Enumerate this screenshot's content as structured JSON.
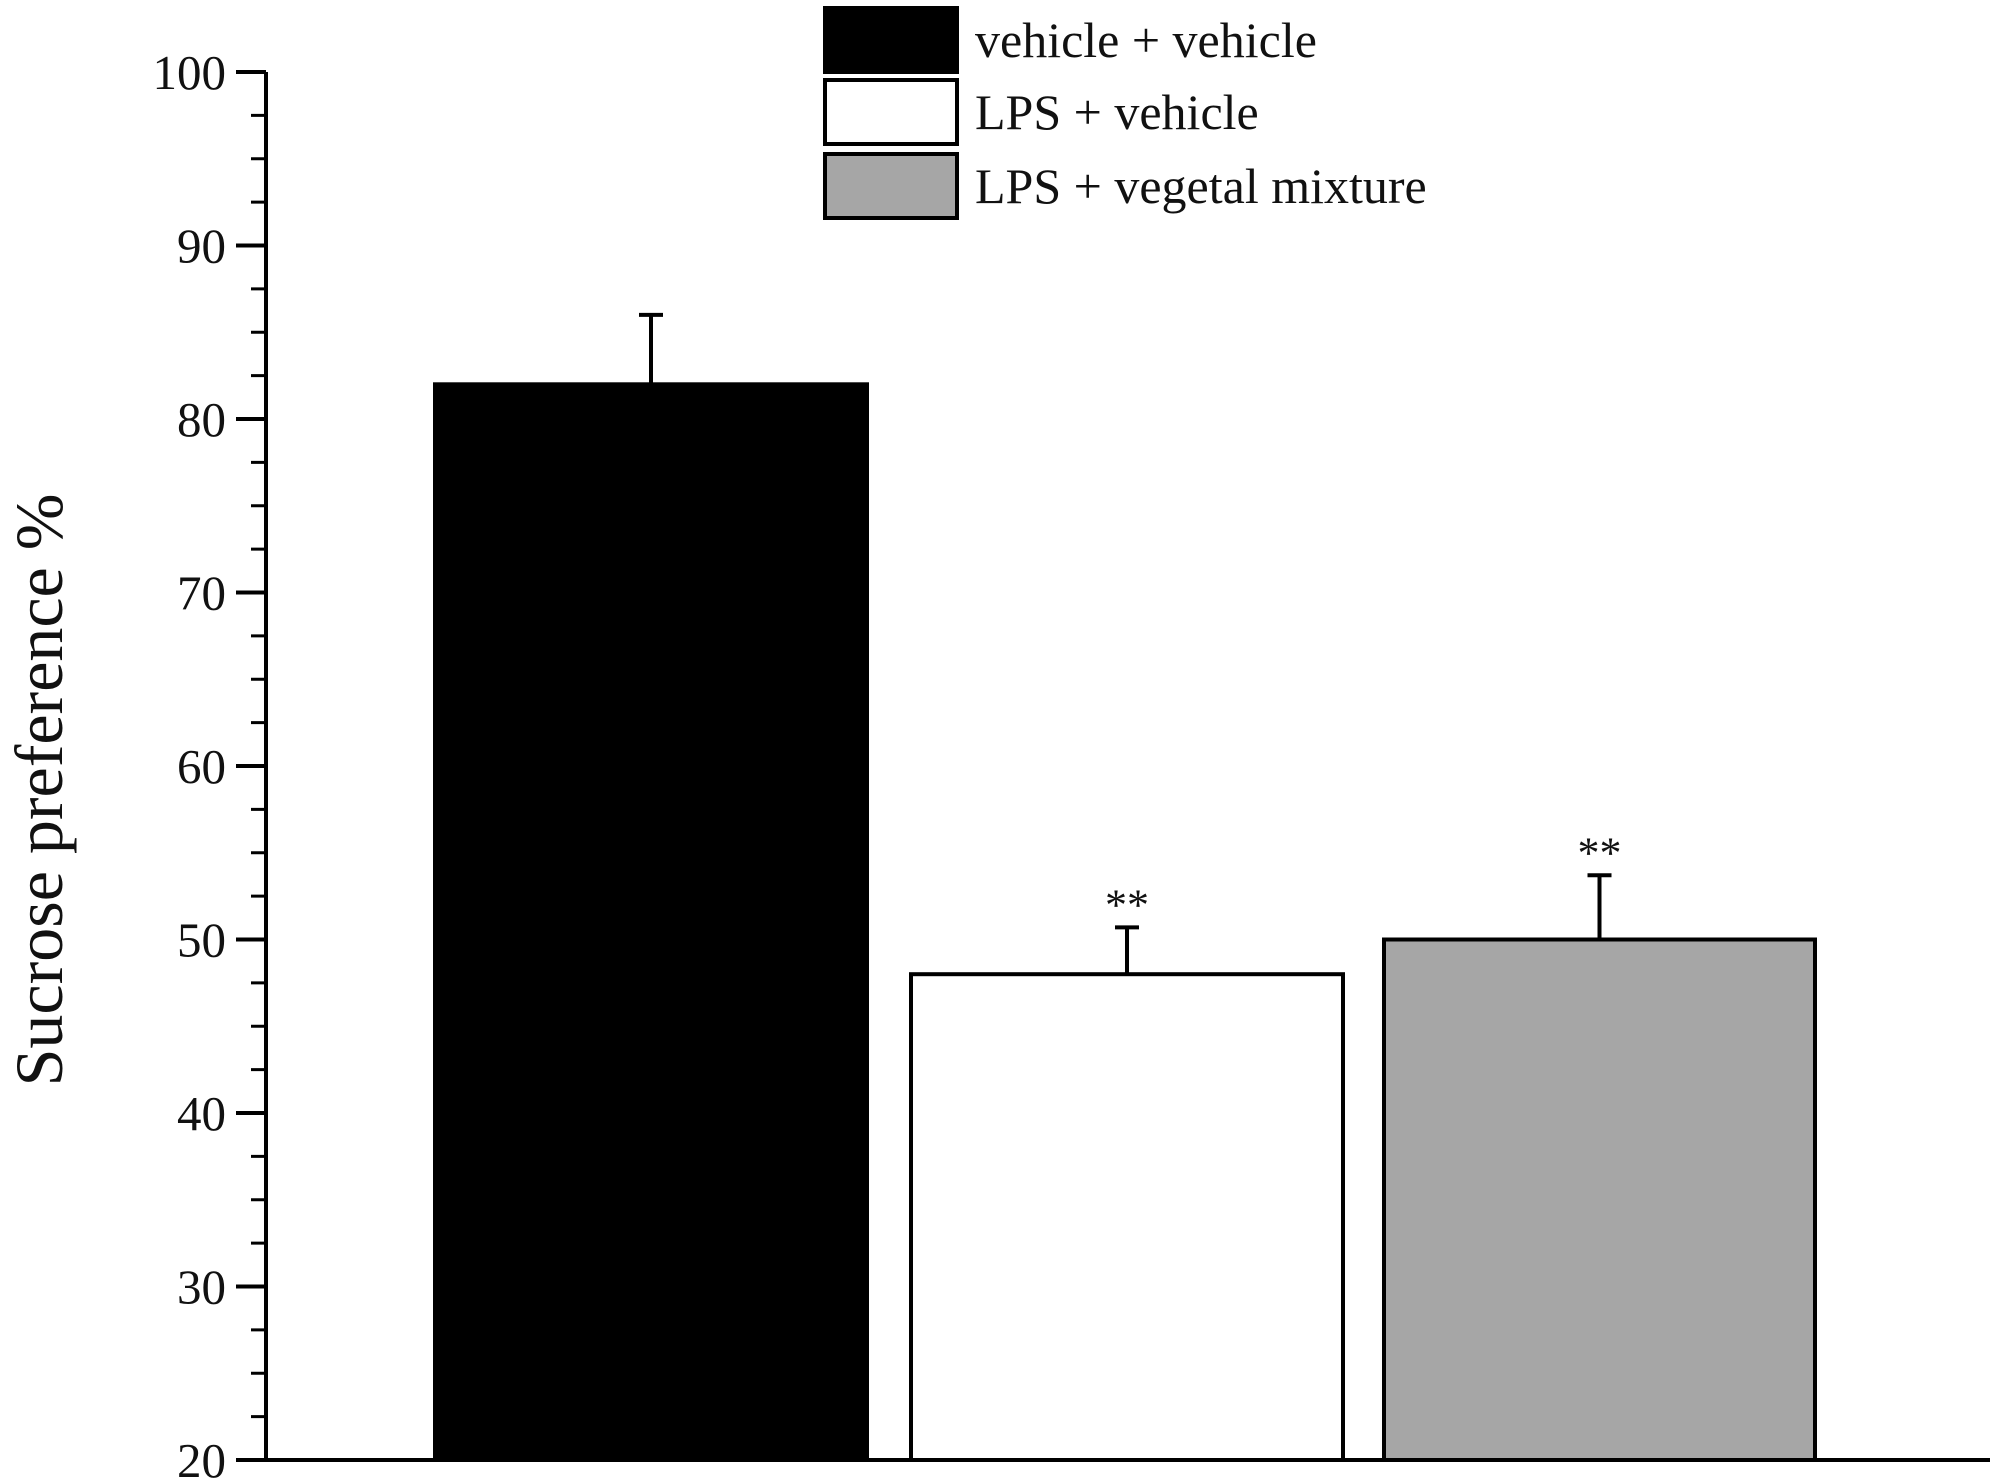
{
  "chart_data": {
    "type": "bar",
    "title": "",
    "xlabel": "",
    "ylabel": "Sucrose preference %",
    "ylim": [
      20,
      100
    ],
    "yticks": [
      20,
      30,
      40,
      50,
      60,
      70,
      80,
      90,
      100
    ],
    "ytick_labels": [
      "20",
      "30",
      "40",
      "50",
      "60",
      "70",
      "80",
      "90",
      "100"
    ],
    "minor_tick_step": 2.5,
    "grid": false,
    "legend_position": "top-center",
    "categories": [
      "vehicle + vehicle",
      "LPS + vehicle",
      "LPS + vegetal mixture"
    ],
    "series": [
      {
        "values": [
          82,
          48,
          50
        ],
        "errors": [
          4,
          2.7,
          3.7
        ],
        "colors": [
          "#000000",
          "#ffffff",
          "#a6a6a6"
        ],
        "annotations": [
          "",
          "**",
          "**"
        ]
      }
    ],
    "legend": [
      {
        "label": "vehicle + vehicle",
        "color": "#000000"
      },
      {
        "label": "LPS + vehicle",
        "color": "#ffffff"
      },
      {
        "label": "LPS + vegetal mixture",
        "color": "#a6a6a6"
      }
    ]
  }
}
